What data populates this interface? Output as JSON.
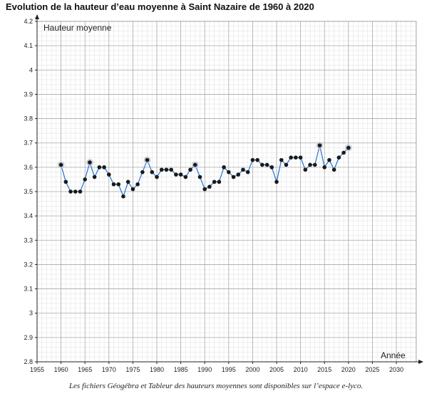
{
  "title": "Evolution de la hauteur d’eau moyenne à Saint Nazaire de 1960 à 2020",
  "caption": "Les fichiers Géogébra et Tableur des hauteurs moyennes sont disponibles sur l’espace e-lyco.",
  "chart_data": {
    "type": "line",
    "title": "Evolution de la hauteur d’eau moyenne à Saint Nazaire de 1960 à 2020",
    "xlabel": "Année",
    "ylabel": "Hauteur moyenne",
    "xlim": [
      1955,
      2032
    ],
    "ylim": [
      2.8,
      4.2
    ],
    "x_ticks": [
      1955,
      1960,
      1965,
      1970,
      1975,
      1980,
      1985,
      1990,
      1995,
      2000,
      2005,
      2010,
      2015,
      2020,
      2025,
      2030
    ],
    "y_ticks": [
      2.8,
      2.9,
      3,
      3.1,
      3.2,
      3.3,
      3.4,
      3.5,
      3.6,
      3.7,
      3.8,
      3.9,
      4,
      4.1,
      4.2
    ],
    "grid": true,
    "line_color": "#2f7bd6",
    "point_color": "#1a1a1a",
    "series": [
      {
        "x": [
          1960,
          1961,
          1962,
          1963,
          1964,
          1965,
          1966,
          1967,
          1968,
          1969,
          1970,
          1971,
          1972,
          1973,
          1974,
          1975,
          1976,
          1977,
          1978,
          1979,
          1980,
          1981,
          1982,
          1983,
          1984,
          1985,
          1986,
          1987,
          1988,
          1989,
          1990,
          1991,
          1992,
          1993,
          1994,
          1995,
          1996,
          1997,
          1998,
          1999,
          2000,
          2001,
          2002,
          2003,
          2004,
          2005,
          2006,
          2007,
          2008,
          2009,
          2010,
          2011,
          2012,
          2013,
          2014,
          2015,
          2016,
          2017,
          2018,
          2019,
          2020
        ],
        "values": [
          3.61,
          3.54,
          3.5,
          3.5,
          3.5,
          3.55,
          3.62,
          3.56,
          3.6,
          3.6,
          3.57,
          3.53,
          3.53,
          3.48,
          3.54,
          3.51,
          3.53,
          3.58,
          3.63,
          3.58,
          3.56,
          3.59,
          3.59,
          3.59,
          3.57,
          3.57,
          3.56,
          3.59,
          3.61,
          3.56,
          3.51,
          3.52,
          3.54,
          3.54,
          3.6,
          3.58,
          3.56,
          3.57,
          3.59,
          3.58,
          3.63,
          3.63,
          3.61,
          3.61,
          3.6,
          3.54,
          3.63,
          3.61,
          3.64,
          3.64,
          3.64,
          3.59,
          3.61,
          3.61,
          3.69,
          3.6,
          3.63,
          3.59,
          3.64,
          3.66,
          3.68
        ]
      }
    ],
    "highlighted_x": [
      1960,
      1966,
      1978,
      1988,
      2014,
      2020
    ]
  }
}
